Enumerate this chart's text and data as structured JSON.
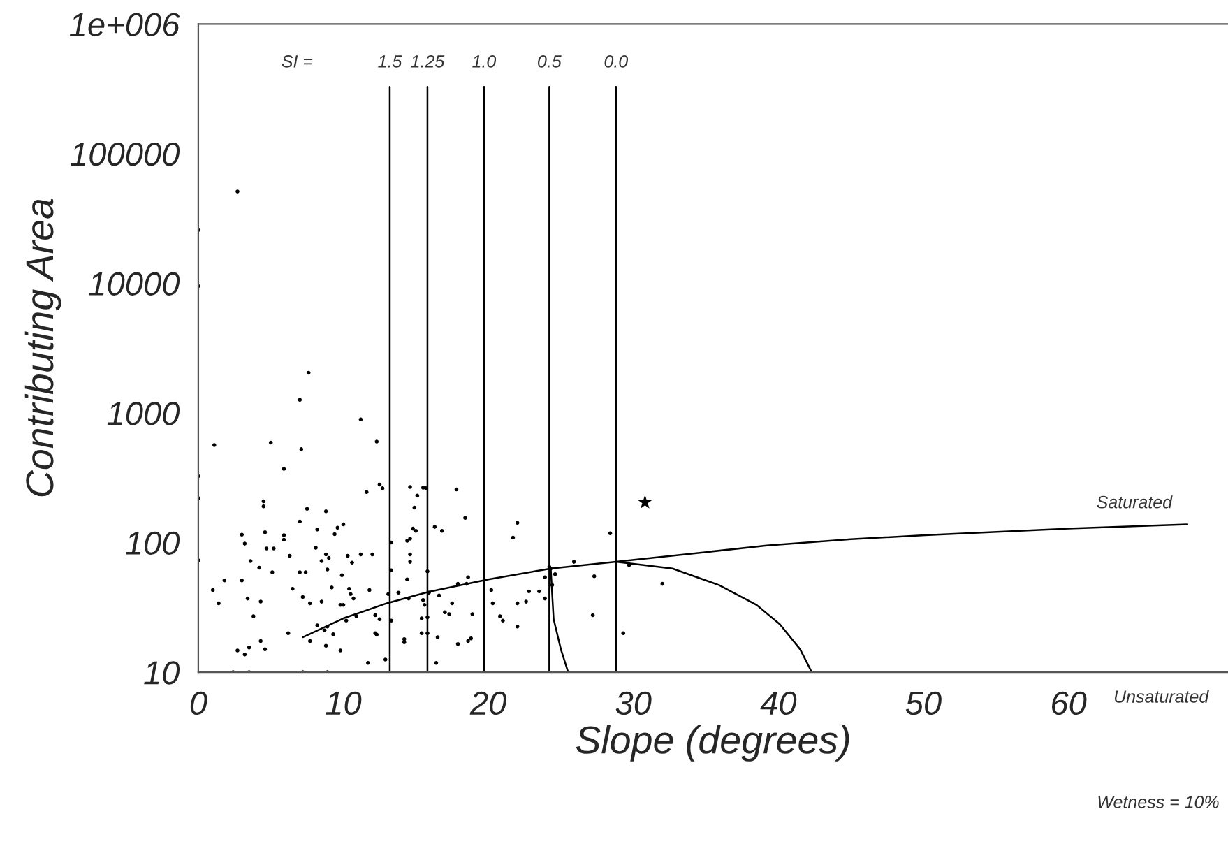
{
  "chart_data": {
    "type": "scatter",
    "xlabel": "Slope (degrees)",
    "ylabel": "Contributing Area",
    "log": "y",
    "xlim": [
      0,
      71
    ],
    "ylim": [
      10,
      1000000
    ],
    "xticks": [
      0,
      10,
      20,
      30,
      40,
      50,
      60
    ],
    "yticks": [
      10,
      100,
      1000,
      10000,
      100000,
      {
        "value": 1000000,
        "label": "1e+006"
      }
    ],
    "grid": false,
    "series": [
      {
        "marker": "circle",
        "color": "#000000",
        "x": [
          7.6,
          7.0,
          11.2,
          1.1,
          5.0,
          12.3,
          7.1,
          5.9,
          0,
          0,
          4.5,
          4.5,
          12.5,
          12.7,
          11.6,
          14.6,
          15.5,
          15.7,
          15.1,
          17.8,
          14.9,
          7.5,
          8.8,
          7.0,
          10.0,
          9.6,
          9.4,
          8.2,
          4.6,
          3.0,
          5.9,
          5.9,
          3.2,
          4.7,
          5.2,
          16.3,
          16.8,
          18.4,
          14.8,
          15.0,
          14.6,
          14.4,
          13.3,
          11.2,
          12.0,
          8.1,
          6.3,
          3.6,
          8.8,
          9.0,
          8.5,
          10.3,
          10.6,
          14.6,
          14.6,
          13.3,
          7.0,
          7.4,
          8.9,
          9.9,
          4.2,
          1.8,
          0,
          3.0,
          5.1,
          1.0,
          1.4,
          3.4,
          4.3,
          6.5,
          7.2,
          7.7,
          8.5,
          9.2,
          9.8,
          10.0,
          10.4,
          10.5,
          10.7,
          11.8,
          13.1,
          13.8,
          14.4,
          14.5,
          15.5,
          15.6,
          15.8,
          15.9,
          16.6,
          17.5,
          17.9,
          18.6,
          18.5,
          3.8,
          4.3,
          4.6,
          3.5,
          2.7,
          3.2,
          6.2,
          7.7,
          8.2,
          8.7,
          8.9,
          8.8,
          9.3,
          9.8,
          10.2,
          10.9,
          12.2,
          12.5,
          12.2,
          12.3,
          11.7,
          12.9,
          13.3,
          14.2,
          14.2,
          15.4,
          15.8,
          15.4,
          15.8,
          16.4,
          16.5,
          17.0,
          17.3,
          18.9,
          18.8,
          18.6,
          17.9,
          20.2,
          20.3,
          20.8,
          21.0,
          22.0,
          22.0,
          22.8,
          22.6,
          23.5,
          23.9,
          23.9,
          21.7,
          22.0,
          24.2,
          24.3,
          24.6,
          24.4,
          25.9,
          27.3,
          27.2,
          28.4,
          29.3,
          29.7,
          32.0,
          2.4,
          3.5,
          7.2,
          8.9,
          2.7,
          0,
          0
        ],
        "values": [
          2040,
          1260,
          890,
          565,
          590,
          600,
          525,
          370,
          325,
          220,
          208,
          190,
          280,
          262,
          245,
          268,
          265,
          262,
          230,
          257,
          186,
          182,
          174,
          145,
          138,
          130,
          116,
          126,
          120,
          115,
          114,
          105,
          98,
          90,
          90,
          132,
          123,
          155,
          128,
          123,
          107,
          103,
          100,
          81,
          81,
          91,
          79,
          72,
          81,
          76,
          72,
          79,
          70,
          81,
          71,
          61,
          59,
          59,
          62,
          56,
          64,
          51,
          73,
          51,
          59,
          43,
          34,
          37,
          35,
          44,
          38,
          34,
          35,
          45,
          33,
          33,
          44,
          40,
          37,
          43,
          40,
          41,
          52,
          37,
          36,
          33,
          60,
          41,
          39,
          34,
          48,
          54,
          48,
          27,
          17.4,
          15,
          15.5,
          14.7,
          13.7,
          20,
          17.4,
          23,
          21,
          22.5,
          16,
          19.6,
          14.7,
          25,
          27,
          27.5,
          25.6,
          20,
          19.5,
          11.8,
          12.5,
          25,
          18,
          17,
          26,
          26.5,
          20,
          20,
          11.8,
          18.6,
          29,
          28,
          28,
          18.2,
          17.4,
          16.5,
          43,
          34,
          27,
          25,
          34,
          22.5,
          42,
          35,
          42,
          37,
          54,
          109,
          142,
          65,
          63,
          57,
          47,
          71,
          55,
          27.5,
          118,
          20,
          67,
          48,
          10,
          10,
          10,
          10,
          51000,
          25700,
          9500
        ]
      },
      {
        "marker": "star",
        "color": "#000000",
        "x": [
          30.8
        ],
        "values": [
          204
        ]
      },
      {
        "type": "line",
        "marker": "none",
        "line_style": "solid",
        "color": "#000000",
        "x": [
          7.2,
          10,
          13,
          15.9,
          20,
          24.3,
          28.8,
          34,
          39.2,
          45,
          50.1,
          60,
          68.2
        ],
        "values": [
          18.6,
          26,
          34,
          41.7,
          52,
          63,
          71,
          82,
          95,
          106,
          114,
          128,
          138
        ]
      },
      {
        "type": "line",
        "marker": "none",
        "line_style": "solid",
        "color": "#000000",
        "x": [
          24.3,
          24.4,
          24.5,
          25.0,
          25.5
        ],
        "values": [
          63,
          40,
          25.6,
          15,
          10
        ]
      },
      {
        "type": "line",
        "marker": "none",
        "line_style": "solid",
        "color": "#000000",
        "x": [
          28.8,
          32.7,
          35.9,
          38.5,
          40.1,
          41.5,
          42.3
        ],
        "values": [
          71,
          63,
          47,
          33,
          23.4,
          15,
          10
        ]
      }
    ],
    "ref_lines": [
      {
        "axis": "x",
        "value": 13.2
      },
      {
        "axis": "x",
        "value": 15.8
      },
      {
        "axis": "x",
        "value": 19.7
      },
      {
        "axis": "x",
        "value": 24.2
      },
      {
        "axis": "x",
        "value": 28.8
      }
    ],
    "annotations": [
      "SI =",
      "1.5",
      "1.25",
      "1.0",
      "0.5",
      "0.0",
      "Saturated",
      "Unsaturated",
      "Wetness = 10%"
    ]
  }
}
